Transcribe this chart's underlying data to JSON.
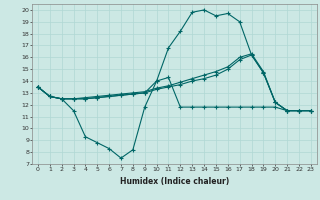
{
  "title": "",
  "xlabel": "Humidex (Indice chaleur)",
  "background_color": "#cce8e4",
  "grid_color": "#b0d8d4",
  "line_color": "#006666",
  "x_values": [
    0,
    1,
    2,
    3,
    4,
    5,
    6,
    7,
    8,
    9,
    10,
    11,
    12,
    13,
    14,
    15,
    16,
    17,
    18,
    19,
    20,
    21,
    22,
    23
  ],
  "series1": [
    13.5,
    12.7,
    12.5,
    11.5,
    9.3,
    8.8,
    8.3,
    7.5,
    8.2,
    11.8,
    14.0,
    14.3,
    11.8,
    11.8,
    11.8,
    11.8,
    11.8,
    11.8,
    11.8,
    11.8,
    11.8,
    11.5,
    11.5,
    11.5
  ],
  "series2": [
    13.5,
    12.7,
    12.5,
    12.5,
    12.5,
    12.6,
    12.7,
    12.8,
    12.9,
    13.0,
    13.3,
    13.5,
    13.7,
    14.0,
    14.2,
    14.5,
    15.0,
    15.8,
    16.2,
    14.7,
    12.2,
    11.5,
    11.5,
    11.5
  ],
  "series3": [
    13.5,
    12.7,
    12.5,
    12.5,
    12.6,
    12.7,
    12.8,
    12.9,
    13.0,
    13.1,
    13.4,
    13.6,
    13.9,
    14.2,
    14.5,
    14.8,
    15.2,
    16.0,
    16.3,
    14.8,
    12.2,
    11.5,
    11.5,
    11.5
  ],
  "series4": [
    13.5,
    12.7,
    12.5,
    12.5,
    12.5,
    12.6,
    12.7,
    12.8,
    12.9,
    13.0,
    14.0,
    16.8,
    18.2,
    19.8,
    20.0,
    19.5,
    19.7,
    19.0,
    16.2,
    14.7,
    12.2,
    11.5,
    11.5,
    11.5
  ],
  "xlim": [
    -0.5,
    23.5
  ],
  "ylim": [
    7,
    20.5
  ],
  "yticks": [
    7,
    8,
    9,
    10,
    11,
    12,
    13,
    14,
    15,
    16,
    17,
    18,
    19,
    20
  ],
  "xticks": [
    0,
    1,
    2,
    3,
    4,
    5,
    6,
    7,
    8,
    9,
    10,
    11,
    12,
    13,
    14,
    15,
    16,
    17,
    18,
    19,
    20,
    21,
    22,
    23
  ],
  "xlabel_fontsize": 5.5,
  "tick_fontsize": 4.5,
  "line_width": 0.8,
  "marker_size": 3
}
